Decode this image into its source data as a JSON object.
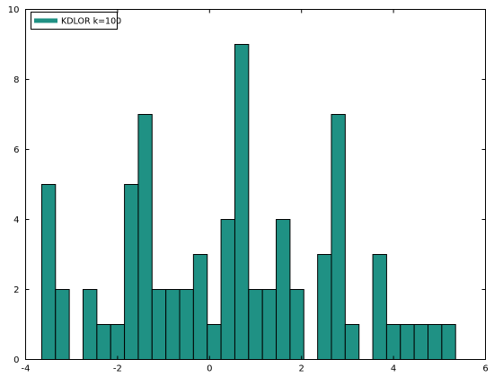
{
  "chart_data": {
    "type": "bar",
    "title": "",
    "xlabel": "",
    "ylabel": "",
    "xlim": [
      -4,
      6
    ],
    "ylim": [
      0,
      10
    ],
    "x_ticks": [
      -4,
      -2,
      0,
      2,
      4,
      6
    ],
    "y_ticks": [
      0,
      2,
      4,
      6,
      8,
      10
    ],
    "x_tick_labels": [
      "-4",
      "-2",
      "0",
      "2",
      "4",
      "6"
    ],
    "y_tick_labels": [
      "0",
      "2",
      "4",
      "6",
      "8",
      "10"
    ],
    "grid": false,
    "legend_position": "top-left",
    "bin_width": 0.3,
    "bin_edges_start": -3.65,
    "series": [
      {
        "name": "KDLOR k=100",
        "color": "#1f9184",
        "edge_color": "#000000",
        "values": [
          5,
          2,
          0,
          2,
          1,
          1,
          5,
          7,
          2,
          2,
          2,
          3,
          1,
          4,
          9,
          2,
          2,
          4,
          2,
          0,
          3,
          7,
          1,
          0,
          3,
          1,
          1,
          1,
          1,
          1
        ]
      }
    ]
  }
}
